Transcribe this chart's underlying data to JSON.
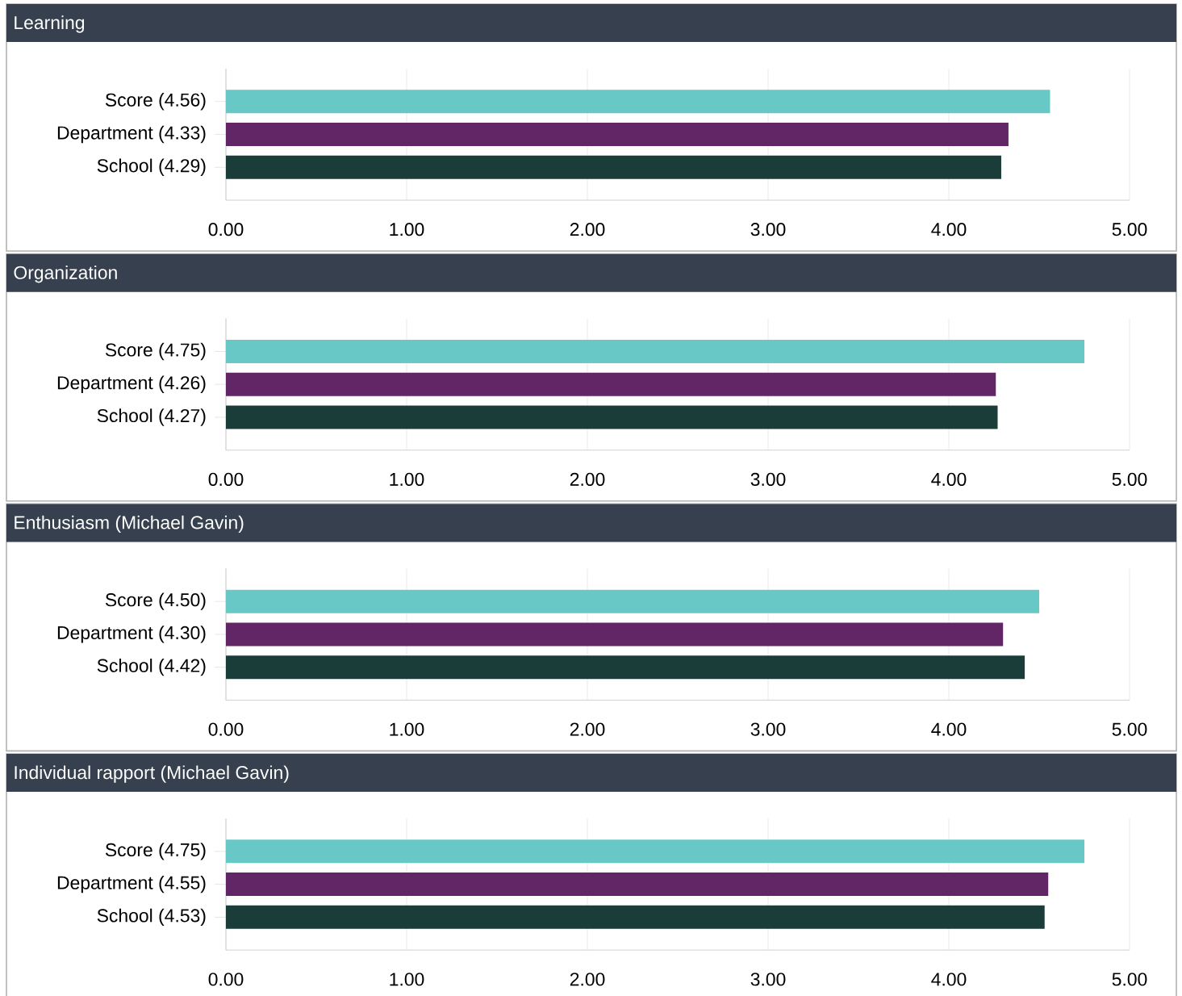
{
  "chart_data": [
    {
      "type": "bar",
      "orientation": "horizontal",
      "title": "Learning",
      "categories": [
        "Score (4.56)",
        "Department (4.33)",
        "School (4.29)"
      ],
      "values": [
        4.56,
        4.33,
        4.29
      ],
      "colors": [
        "#68c8c6",
        "#622566",
        "#1b3d3a"
      ],
      "xlim": [
        0,
        5
      ],
      "xticks": [
        {
          "value": 0,
          "label": "0.00"
        },
        {
          "value": 1,
          "label": "1.00"
        },
        {
          "value": 2,
          "label": "2.00"
        },
        {
          "value": 3,
          "label": "3.00"
        },
        {
          "value": 4,
          "label": "4.00"
        },
        {
          "value": 5,
          "label": "5.00"
        }
      ],
      "grid": "x"
    },
    {
      "type": "bar",
      "orientation": "horizontal",
      "title": "Organization",
      "categories": [
        "Score (4.75)",
        "Department (4.26)",
        "School (4.27)"
      ],
      "values": [
        4.75,
        4.26,
        4.27
      ],
      "colors": [
        "#68c8c6",
        "#622566",
        "#1b3d3a"
      ],
      "xlim": [
        0,
        5
      ],
      "xticks": [
        {
          "value": 0,
          "label": "0.00"
        },
        {
          "value": 1,
          "label": "1.00"
        },
        {
          "value": 2,
          "label": "2.00"
        },
        {
          "value": 3,
          "label": "3.00"
        },
        {
          "value": 4,
          "label": "4.00"
        },
        {
          "value": 5,
          "label": "5.00"
        }
      ],
      "grid": "x"
    },
    {
      "type": "bar",
      "orientation": "horizontal",
      "title": "Enthusiasm (Michael Gavin)",
      "categories": [
        "Score (4.50)",
        "Department (4.30)",
        "School (4.42)"
      ],
      "values": [
        4.5,
        4.3,
        4.42
      ],
      "colors": [
        "#68c8c6",
        "#622566",
        "#1b3d3a"
      ],
      "xlim": [
        0,
        5
      ],
      "xticks": [
        {
          "value": 0,
          "label": "0.00"
        },
        {
          "value": 1,
          "label": "1.00"
        },
        {
          "value": 2,
          "label": "2.00"
        },
        {
          "value": 3,
          "label": "3.00"
        },
        {
          "value": 4,
          "label": "4.00"
        },
        {
          "value": 5,
          "label": "5.00"
        }
      ],
      "grid": "x"
    },
    {
      "type": "bar",
      "orientation": "horizontal",
      "title": "Individual rapport (Michael Gavin)",
      "categories": [
        "Score (4.75)",
        "Department (4.55)",
        "School (4.53)"
      ],
      "values": [
        4.75,
        4.55,
        4.53
      ],
      "colors": [
        "#68c8c6",
        "#622566",
        "#1b3d3a"
      ],
      "xlim": [
        0,
        5
      ],
      "xticks": [
        {
          "value": 0,
          "label": "0.00"
        },
        {
          "value": 1,
          "label": "1.00"
        },
        {
          "value": 2,
          "label": "2.00"
        },
        {
          "value": 3,
          "label": "3.00"
        },
        {
          "value": 4,
          "label": "4.00"
        },
        {
          "value": 5,
          "label": "5.00"
        }
      ],
      "grid": "x"
    }
  ]
}
